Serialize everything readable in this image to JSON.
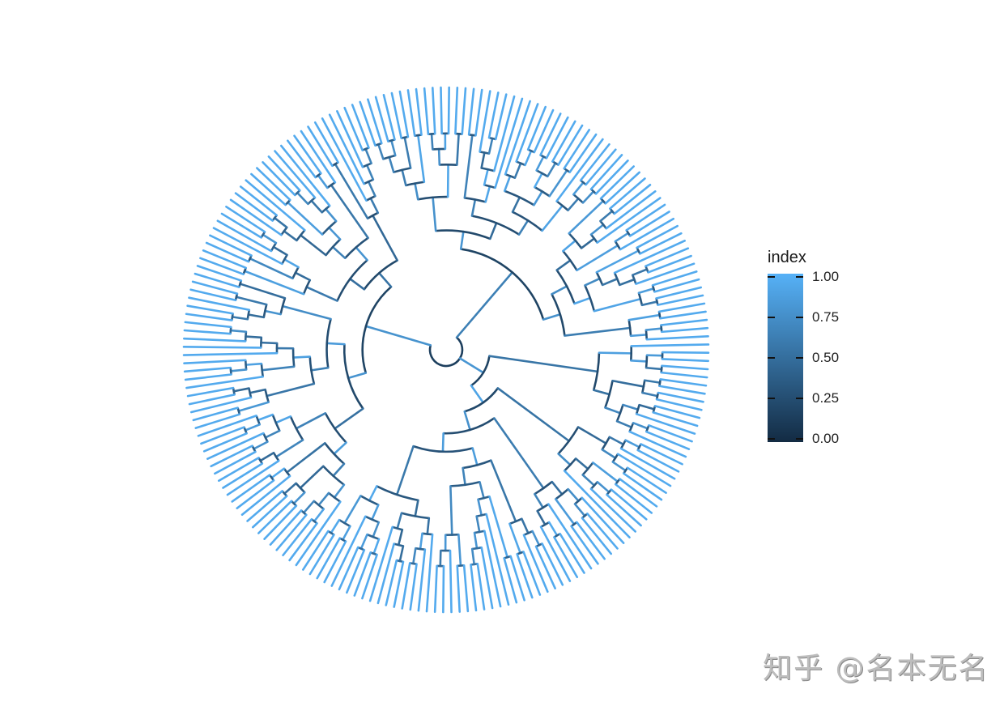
{
  "chart_data": {
    "type": "circular-dendrogram",
    "title": "",
    "xlabel": "",
    "ylabel": "",
    "layout": "circular",
    "leaf_count_approx": 200,
    "color_mapping": "index",
    "legend": {
      "title": "index",
      "position": "right",
      "type": "continuous-colorbar",
      "ticks": [
        1.0,
        0.75,
        0.5,
        0.25,
        0.0
      ],
      "tick_labels": [
        "1.00",
        "0.75",
        "0.50",
        "0.25",
        "0.00"
      ],
      "range": [
        0,
        1
      ],
      "low_color": "#132B43",
      "high_color": "#56B1F7"
    },
    "grid": false
  },
  "legend": {
    "title": "index",
    "ticks": [
      "1.00",
      "0.75",
      "0.50",
      "0.25",
      "0.00"
    ]
  },
  "colors": {
    "low": "#132B43",
    "high": "#56B1F7",
    "background": "#ffffff"
  },
  "watermark": {
    "text": "知乎 @名本无名"
  }
}
